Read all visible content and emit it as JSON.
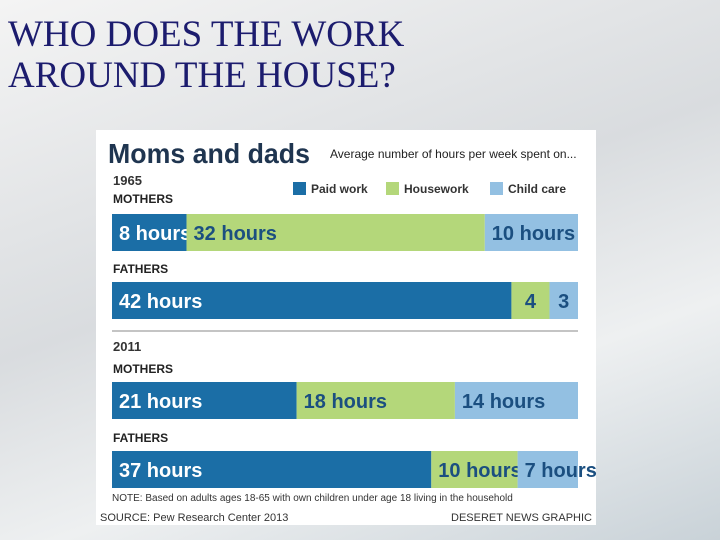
{
  "slide_title": [
    "WHO DOES THE WORK",
    "AROUND THE HOUSE?"
  ],
  "chart_data": {
    "type": "stacked-bar-horizontal",
    "title": "Moms and dads",
    "subtitle": "Average number of hours per week spent on...",
    "groups": [
      "1965",
      "2011"
    ],
    "categories": [
      "MOTHERS",
      "FATHERS",
      "MOTHERS",
      "FATHERS"
    ],
    "series": [
      {
        "name": "Paid work",
        "color": "#1b6ea6",
        "label_color": "#ffffff",
        "values": [
          8,
          42,
          21,
          37
        ],
        "value_labels": [
          "8 hours",
          "42 hours",
          "21 hours",
          "37 hours"
        ]
      },
      {
        "name": "Housework",
        "color": "#b4d77a",
        "label_color": "#1b4f80",
        "values": [
          32,
          4,
          18,
          10
        ],
        "value_labels": [
          "32 hours",
          "4",
          "18 hours",
          "10 hours"
        ]
      },
      {
        "name": "Child care",
        "color": "#93c0e2",
        "label_color": "#1b4f80",
        "values": [
          10,
          3,
          14,
          7
        ],
        "value_labels": [
          "10 hours",
          "3",
          "14 hours",
          "7 hours"
        ]
      }
    ],
    "note": "NOTE: Based on adults ages 18-65 with own children under age 18 living in the household",
    "source": "SOURCE: Pew Research Center 2013",
    "credit": "DESERET NEWS GRAPHIC"
  }
}
